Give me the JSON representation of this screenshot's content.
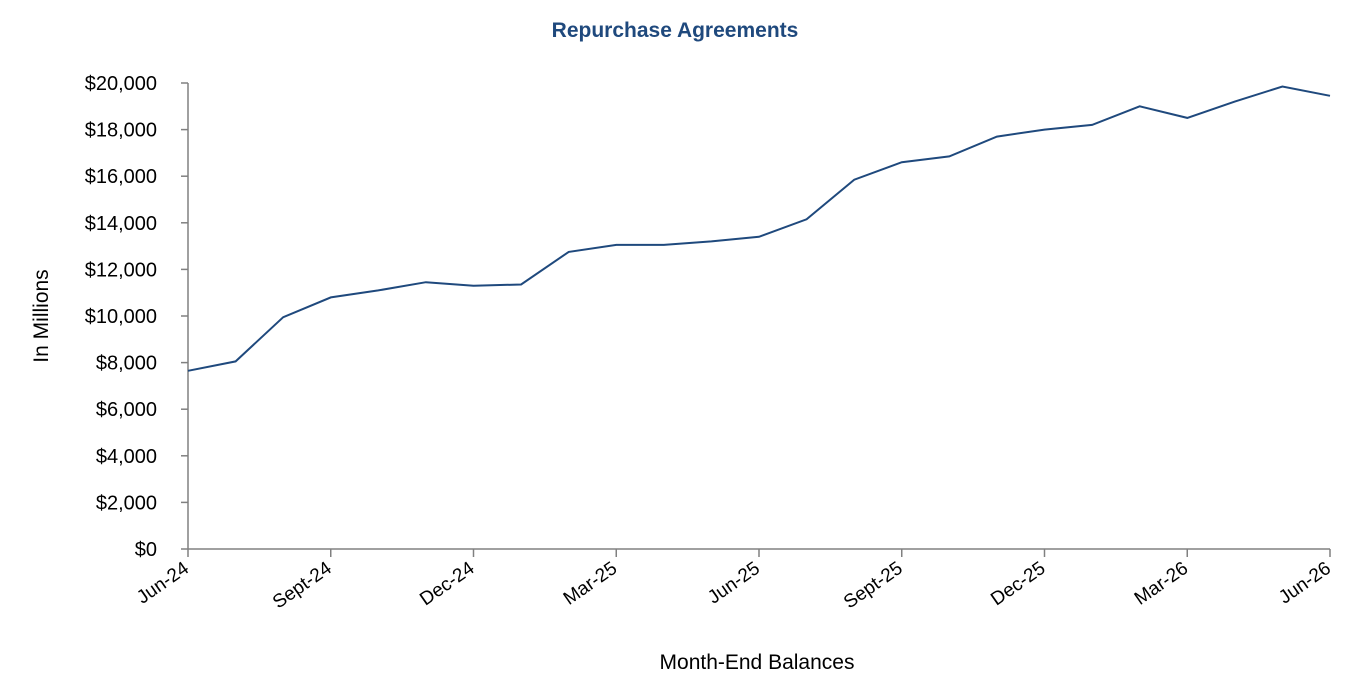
{
  "chart_data": {
    "type": "line",
    "title": "Repurchase Agreements",
    "xlabel": "Month-End Balances",
    "ylabel": "In Millions",
    "ylim": [
      0,
      20000
    ],
    "y_ticks": [
      0,
      2000,
      4000,
      6000,
      8000,
      10000,
      12000,
      14000,
      16000,
      18000,
      20000
    ],
    "y_tick_labels": [
      "$0",
      "$2,000",
      "$4,000",
      "$6,000",
      "$8,000",
      "$10,000",
      "$12,000",
      "$14,000",
      "$16,000",
      "$18,000",
      "$20,000"
    ],
    "x_tick_labels": [
      "Jun-24",
      "Sept-24",
      "Dec-24",
      "Mar-25",
      "Jun-25",
      "Sept-25",
      "Dec-25",
      "Mar-26",
      "Jun-26"
    ],
    "grid": false,
    "legend": "none",
    "line_color": "#1F497D",
    "title_color": "#1F497D",
    "series": [
      {
        "x": [
          "Jun-24",
          "Jul-24",
          "Aug-24",
          "Sept-24",
          "Oct-24",
          "Nov-24",
          "Dec-24",
          "Jan-25",
          "Feb-25",
          "Mar-25",
          "Apr-25",
          "May-25",
          "Jun-25",
          "Jul-25",
          "Aug-25",
          "Sept-25",
          "Oct-25",
          "Nov-25",
          "Dec-25",
          "Jan-26",
          "Feb-26",
          "Mar-26",
          "Apr-26",
          "May-26",
          "Jun-26"
        ],
        "values": [
          7650,
          8050,
          9950,
          10800,
          11100,
          11450,
          11300,
          11350,
          12750,
          13050,
          13050,
          13200,
          13400,
          14150,
          15850,
          16600,
          16850,
          17700,
          18000,
          18200,
          19000,
          18500,
          19200,
          19850,
          19450
        ]
      }
    ]
  }
}
